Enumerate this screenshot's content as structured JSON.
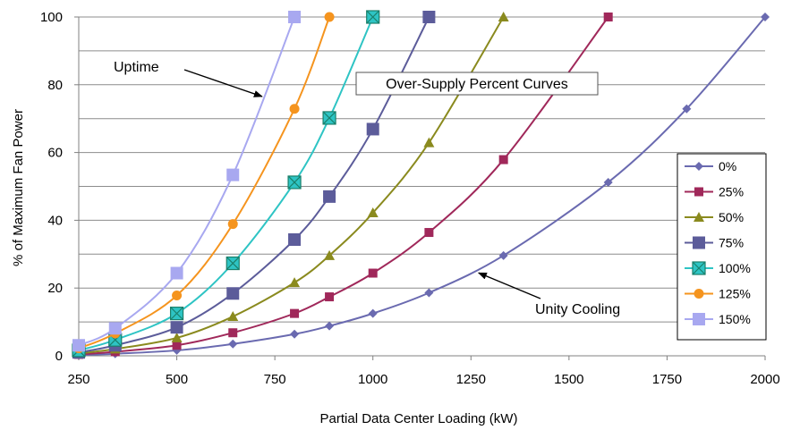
{
  "chart_data": {
    "type": "line",
    "title": "",
    "xlabel": "Partial Data Center Loading (kW)",
    "ylabel": "% of Maximum Fan Power",
    "xlim": [
      250,
      2000
    ],
    "ylim": [
      0,
      100
    ],
    "xticks": [
      "250",
      "500",
      "750",
      "1000",
      "1250",
      "1500",
      "1750",
      "2000"
    ],
    "yticks": [
      "0",
      "20",
      "40",
      "60",
      "80",
      "100"
    ],
    "grid": "horizontal",
    "legend_position": "right",
    "series": [
      {
        "name": "0%",
        "color": "#6A6AB0",
        "marker": "diamond",
        "x": [
          250,
          343,
          500,
          643,
          800,
          889,
          1000,
          1143,
          1333,
          1600,
          1800,
          2000
        ],
        "y": [
          0.2,
          0.6,
          1.6,
          3.5,
          6.4,
          8.8,
          12.5,
          18.6,
          29.6,
          51.2,
          72.9,
          100
        ]
      },
      {
        "name": "25%",
        "color": "#A0285A",
        "marker": "square",
        "x": [
          250,
          343,
          500,
          643,
          800,
          889,
          1000,
          1143,
          1333,
          1600
        ],
        "y": [
          0.4,
          1.2,
          3.1,
          6.8,
          12.5,
          17.4,
          24.4,
          36.4,
          57.9,
          100
        ]
      },
      {
        "name": "50%",
        "color": "#8A8A1E",
        "marker": "triangle",
        "x": [
          250,
          343,
          500,
          643,
          800,
          889,
          1000,
          1143,
          1333
        ],
        "y": [
          0.7,
          2.0,
          5.3,
          11.6,
          21.6,
          29.6,
          42.2,
          62.9,
          100
        ]
      },
      {
        "name": "75%",
        "color": "#5C5C9A",
        "marker": "square-large",
        "x": [
          250,
          343,
          500,
          643,
          800,
          889,
          1000,
          1143
        ],
        "y": [
          1.0,
          3.1,
          8.4,
          18.4,
          34.3,
          47.0,
          66.9,
          100
        ]
      },
      {
        "name": "100%",
        "color": "#2EC4C4",
        "marker": "square-x",
        "x": [
          250,
          343,
          500,
          643,
          800,
          889,
          1000
        ],
        "y": [
          1.6,
          4.7,
          12.5,
          27.3,
          51.2,
          70.2,
          100
        ]
      },
      {
        "name": "125%",
        "color": "#F5941E",
        "marker": "circle",
        "x": [
          250,
          343,
          500,
          643,
          800,
          889
        ],
        "y": [
          2.2,
          6.6,
          17.8,
          38.9,
          72.9,
          100
        ]
      },
      {
        "name": "150%",
        "color": "#A8A8F0",
        "marker": "square-large",
        "x": [
          250,
          343,
          500,
          643,
          800
        ],
        "y": [
          3.1,
          8.1,
          24.4,
          53.4,
          100
        ]
      }
    ],
    "annotations": [
      {
        "text": "Uptime",
        "arrow_to": [
          722,
          76
        ]
      },
      {
        "text": "Over-Supply Percent Curves",
        "boxed": true
      },
      {
        "text": "Unity Cooling",
        "arrow_to": [
          1265,
          25
        ]
      }
    ]
  }
}
